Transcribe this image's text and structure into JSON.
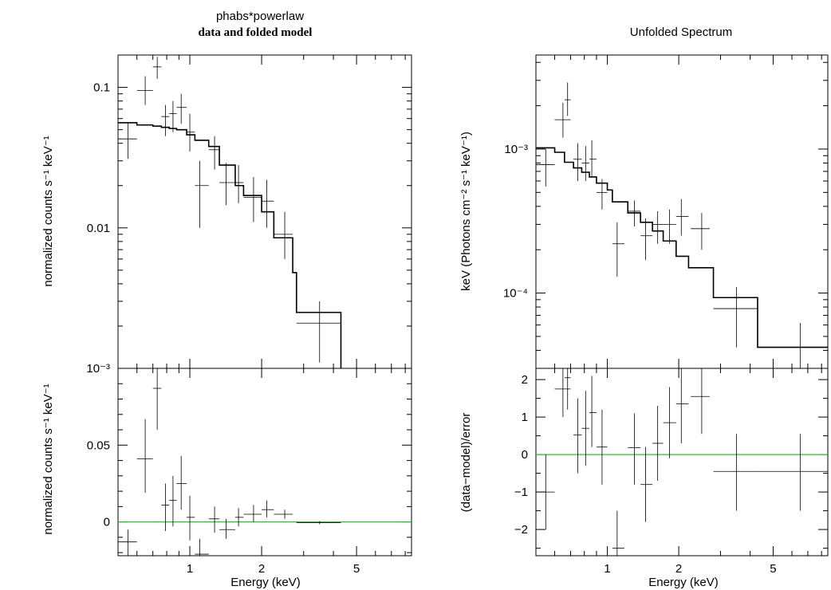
{
  "chart_data": [
    {
      "type": "line",
      "panel": "top-left",
      "title": "phabs*powerlaw",
      "subtitle": "data and folded model",
      "ylabel": "normalized counts s⁻¹ keV⁻¹",
      "xscale": "log",
      "yscale": "log",
      "xlim": [
        0.5,
        8.5
      ],
      "ylim": [
        0.001,
        0.17
      ],
      "yticks": [
        {
          "v": 0.1,
          "label": "0.1"
        },
        {
          "v": 0.01,
          "label": "0.01"
        },
        {
          "v": 0.001,
          "label": "10⁻³"
        }
      ],
      "data": [
        {
          "x": 0.55,
          "xl": 0.5,
          "xh": 0.6,
          "y": 0.043,
          "yl": 0.031,
          "yh": 0.056
        },
        {
          "x": 0.65,
          "xl": 0.6,
          "xh": 0.7,
          "y": 0.095,
          "yl": 0.075,
          "yh": 0.12
        },
        {
          "x": 0.73,
          "xl": 0.7,
          "xh": 0.76,
          "y": 0.14,
          "yl": 0.115,
          "yh": 0.165
        },
        {
          "x": 0.79,
          "xl": 0.76,
          "xh": 0.82,
          "y": 0.062,
          "yl": 0.045,
          "yh": 0.075
        },
        {
          "x": 0.85,
          "xl": 0.82,
          "xh": 0.88,
          "y": 0.065,
          "yl": 0.048,
          "yh": 0.08
        },
        {
          "x": 0.92,
          "xl": 0.88,
          "xh": 0.97,
          "y": 0.072,
          "yl": 0.055,
          "yh": 0.09
        },
        {
          "x": 1.0,
          "xl": 0.97,
          "xh": 1.05,
          "y": 0.048,
          "yl": 0.035,
          "yh": 0.065
        },
        {
          "x": 1.1,
          "xl": 1.05,
          "xh": 1.2,
          "y": 0.02,
          "yl": 0.01,
          "yh": 0.03
        },
        {
          "x": 1.27,
          "xl": 1.2,
          "xh": 1.33,
          "y": 0.036,
          "yl": 0.026,
          "yh": 0.045
        },
        {
          "x": 1.42,
          "xl": 1.33,
          "xh": 1.55,
          "y": 0.021,
          "yl": 0.0145,
          "yh": 0.029
        },
        {
          "x": 1.6,
          "xl": 1.55,
          "xh": 1.68,
          "y": 0.021,
          "yl": 0.015,
          "yh": 0.028
        },
        {
          "x": 1.85,
          "xl": 1.68,
          "xh": 2.0,
          "y": 0.0165,
          "yl": 0.011,
          "yh": 0.023
        },
        {
          "x": 2.1,
          "xl": 2.0,
          "xh": 2.25,
          "y": 0.0155,
          "yl": 0.01,
          "yh": 0.022
        },
        {
          "x": 2.5,
          "xl": 2.25,
          "xh": 2.7,
          "y": 0.009,
          "yl": 0.006,
          "yh": 0.013
        },
        {
          "x": 3.5,
          "xl": 2.8,
          "xh": 4.3,
          "y": 0.0021,
          "yl": 0.0011,
          "yh": 0.003
        }
      ],
      "model": [
        [
          0.5,
          0.056
        ],
        [
          0.6,
          0.054
        ],
        [
          0.7,
          0.053
        ],
        [
          0.76,
          0.052
        ],
        [
          0.82,
          0.051
        ],
        [
          0.88,
          0.05
        ],
        [
          0.97,
          0.046
        ],
        [
          1.05,
          0.042
        ],
        [
          1.2,
          0.038
        ],
        [
          1.33,
          0.028
        ],
        [
          1.55,
          0.02
        ],
        [
          1.68,
          0.017
        ],
        [
          2.0,
          0.013
        ],
        [
          2.25,
          0.0085
        ],
        [
          2.7,
          0.0048
        ],
        [
          2.8,
          0.0025
        ],
        [
          4.3,
          0.0025
        ],
        [
          4.3,
          0.001
        ]
      ]
    },
    {
      "type": "line",
      "panel": "bottom-left",
      "xlabel": "Energy (keV)",
      "ylabel": "normalized counts s⁻¹ keV⁻¹",
      "xscale": "log",
      "yscale": "linear",
      "xlim": [
        0.5,
        8.5
      ],
      "ylim": [
        -0.022,
        0.1
      ],
      "yticks": [
        {
          "v": 0,
          "label": "0"
        },
        {
          "v": 0.05,
          "label": "0.05"
        }
      ],
      "xticks": [
        {
          "v": 1,
          "label": "1"
        },
        {
          "v": 2,
          "label": "2"
        },
        {
          "v": 5,
          "label": "5"
        }
      ],
      "zero": 0,
      "data": [
        {
          "x": 0.55,
          "xl": 0.5,
          "xh": 0.6,
          "y": -0.013,
          "yl": -0.022,
          "yh": -0.005
        },
        {
          "x": 0.65,
          "xl": 0.6,
          "xh": 0.7,
          "y": 0.041,
          "yl": 0.019,
          "yh": 0.067
        },
        {
          "x": 0.73,
          "xl": 0.7,
          "xh": 0.76,
          "y": 0.087,
          "yl": 0.06,
          "yh": 0.1
        },
        {
          "x": 0.79,
          "xl": 0.76,
          "xh": 0.82,
          "y": 0.011,
          "yl": -0.006,
          "yh": 0.025
        },
        {
          "x": 0.85,
          "xl": 0.82,
          "xh": 0.88,
          "y": 0.014,
          "yl": -0.003,
          "yh": 0.03
        },
        {
          "x": 0.92,
          "xl": 0.88,
          "xh": 0.97,
          "y": 0.025,
          "yl": 0.008,
          "yh": 0.043
        },
        {
          "x": 1.0,
          "xl": 0.97,
          "xh": 1.05,
          "y": 0.003,
          "yl": -0.012,
          "yh": 0.017
        },
        {
          "x": 1.1,
          "xl": 1.05,
          "xh": 1.2,
          "y": -0.021,
          "yl": -0.022,
          "yh": -0.011
        },
        {
          "x": 1.27,
          "xl": 1.2,
          "xh": 1.33,
          "y": 0.002,
          "yl": -0.007,
          "yh": 0.01
        },
        {
          "x": 1.42,
          "xl": 1.33,
          "xh": 1.55,
          "y": -0.005,
          "yl": -0.011,
          "yh": 0.002
        },
        {
          "x": 1.6,
          "xl": 1.55,
          "xh": 1.68,
          "y": 0.003,
          "yl": -0.003,
          "yh": 0.009
        },
        {
          "x": 1.85,
          "xl": 1.68,
          "xh": 2.0,
          "y": 0.005,
          "yl": 0.0,
          "yh": 0.011
        },
        {
          "x": 2.1,
          "xl": 2.0,
          "xh": 2.25,
          "y": 0.008,
          "yl": 0.003,
          "yh": 0.014
        },
        {
          "x": 2.5,
          "xl": 2.25,
          "xh": 2.7,
          "y": 0.005,
          "yl": 0.002,
          "yh": 0.008
        },
        {
          "x": 3.5,
          "xl": 2.8,
          "xh": 4.3,
          "y": -0.0005,
          "yl": -0.0015,
          "yh": 0.0005
        }
      ]
    },
    {
      "type": "line",
      "panel": "top-right",
      "title": "Unfolded Spectrum",
      "ylabel": "keV (Photons cm⁻² s⁻¹ keV⁻¹)",
      "xscale": "log",
      "yscale": "log",
      "xlim": [
        0.5,
        8.5
      ],
      "ylim": [
        3e-05,
        0.0045
      ],
      "yticks": [
        {
          "v": 0.001,
          "label": "10⁻³"
        },
        {
          "v": 0.0001,
          "label": "10⁻⁴"
        }
      ],
      "data": [
        {
          "x": 0.55,
          "xl": 0.5,
          "xh": 0.6,
          "y": 0.00078,
          "yl": 0.00055,
          "yh": 0.001
        },
        {
          "x": 0.65,
          "xl": 0.6,
          "xh": 0.7,
          "y": 0.0016,
          "yl": 0.0012,
          "yh": 0.0021
        },
        {
          "x": 0.68,
          "xl": 0.66,
          "xh": 0.7,
          "y": 0.0022,
          "yl": 0.0017,
          "yh": 0.0029
        },
        {
          "x": 0.75,
          "xl": 0.72,
          "xh": 0.78,
          "y": 0.00085,
          "yl": 0.0006,
          "yh": 0.0011
        },
        {
          "x": 0.81,
          "xl": 0.78,
          "xh": 0.84,
          "y": 0.0008,
          "yl": 0.0006,
          "yh": 0.00105
        },
        {
          "x": 0.86,
          "xl": 0.84,
          "xh": 0.9,
          "y": 0.00085,
          "yl": 0.00065,
          "yh": 0.00115
        },
        {
          "x": 0.95,
          "xl": 0.9,
          "xh": 1.0,
          "y": 0.0005,
          "yl": 0.00038,
          "yh": 0.00062
        },
        {
          "x": 1.1,
          "xl": 1.05,
          "xh": 1.18,
          "y": 0.00022,
          "yl": 0.00013,
          "yh": 0.00031
        },
        {
          "x": 1.3,
          "xl": 1.22,
          "xh": 1.38,
          "y": 0.00037,
          "yl": 0.00029,
          "yh": 0.00044
        },
        {
          "x": 1.45,
          "xl": 1.38,
          "xh": 1.55,
          "y": 0.00025,
          "yl": 0.00017,
          "yh": 0.00033
        },
        {
          "x": 1.63,
          "xl": 1.55,
          "xh": 1.72,
          "y": 0.0003,
          "yl": 0.00022,
          "yh": 0.00037
        },
        {
          "x": 1.83,
          "xl": 1.72,
          "xh": 1.95,
          "y": 0.0003,
          "yl": 0.00022,
          "yh": 0.00038
        },
        {
          "x": 2.05,
          "xl": 1.95,
          "xh": 2.2,
          "y": 0.00034,
          "yl": 0.00025,
          "yh": 0.00045
        },
        {
          "x": 2.5,
          "xl": 2.25,
          "xh": 2.7,
          "y": 0.00028,
          "yl": 0.0002,
          "yh": 0.00036
        },
        {
          "x": 3.5,
          "xl": 2.8,
          "xh": 4.3,
          "y": 7.8e-05,
          "yl": 4.2e-05,
          "yh": 0.00011
        },
        {
          "x": 6.5,
          "xl": 4.3,
          "xh": 8.5,
          "y": 4.2e-05,
          "yl": 2.4e-05,
          "yh": 6.2e-05
        }
      ],
      "model": [
        [
          0.5,
          0.00102
        ],
        [
          0.6,
          0.00095
        ],
        [
          0.66,
          0.00081
        ],
        [
          0.72,
          0.00074
        ],
        [
          0.78,
          0.00069
        ],
        [
          0.84,
          0.00064
        ],
        [
          0.9,
          0.00058
        ],
        [
          1.0,
          0.00052
        ],
        [
          1.05,
          0.00043
        ],
        [
          1.22,
          0.00036
        ],
        [
          1.38,
          0.00031
        ],
        [
          1.55,
          0.00027
        ],
        [
          1.72,
          0.00023
        ],
        [
          1.95,
          0.00018
        ],
        [
          2.2,
          0.00015
        ],
        [
          2.8,
          9.3e-05
        ],
        [
          4.3,
          9.3e-05
        ],
        [
          4.3,
          4.2e-05
        ],
        [
          8.5,
          4.2e-05
        ]
      ]
    },
    {
      "type": "line",
      "panel": "bottom-right",
      "xlabel": "Energy (keV)",
      "ylabel": "(data−model)/error",
      "xscale": "log",
      "yscale": "linear",
      "xlim": [
        0.5,
        8.5
      ],
      "ylim": [
        -2.7,
        2.3
      ],
      "yticks": [
        {
          "v": -2,
          "label": "−2"
        },
        {
          "v": -1,
          "label": "−1"
        },
        {
          "v": 0,
          "label": "0"
        },
        {
          "v": 1,
          "label": "1"
        },
        {
          "v": 2,
          "label": "2"
        }
      ],
      "xticks": [
        {
          "v": 1,
          "label": "1"
        },
        {
          "v": 2,
          "label": "2"
        },
        {
          "v": 5,
          "label": "5"
        }
      ],
      "zero": 0,
      "data": [
        {
          "x": 0.55,
          "xl": 0.5,
          "xh": 0.6,
          "y": -1.0,
          "yl": -2.0,
          "yh": 0.0
        },
        {
          "x": 0.65,
          "xl": 0.6,
          "xh": 0.7,
          "y": 1.75,
          "yl": 1.0,
          "yh": 2.3
        },
        {
          "x": 0.68,
          "xl": 0.66,
          "xh": 0.7,
          "y": 2.05,
          "yl": 1.2,
          "yh": 2.3
        },
        {
          "x": 0.75,
          "xl": 0.72,
          "xh": 0.78,
          "y": 0.52,
          "yl": -0.5,
          "yh": 1.5
        },
        {
          "x": 0.81,
          "xl": 0.78,
          "xh": 0.84,
          "y": 0.7,
          "yl": -0.3,
          "yh": 1.7
        },
        {
          "x": 0.86,
          "xl": 0.84,
          "xh": 0.9,
          "y": 1.12,
          "yl": 0.2,
          "yh": 2.1
        },
        {
          "x": 0.95,
          "xl": 0.9,
          "xh": 1.0,
          "y": 0.2,
          "yl": -0.8,
          "yh": 1.2
        },
        {
          "x": 1.1,
          "xl": 1.05,
          "xh": 1.18,
          "y": -2.5,
          "yl": -2.7,
          "yh": -1.5
        },
        {
          "x": 1.3,
          "xl": 1.22,
          "xh": 1.38,
          "y": 0.18,
          "yl": -0.8,
          "yh": 1.1
        },
        {
          "x": 1.45,
          "xl": 1.38,
          "xh": 1.55,
          "y": -0.8,
          "yl": -1.8,
          "yh": 0.2
        },
        {
          "x": 1.63,
          "xl": 1.55,
          "xh": 1.72,
          "y": 0.3,
          "yl": -0.7,
          "yh": 1.3
        },
        {
          "x": 1.83,
          "xl": 1.72,
          "xh": 1.95,
          "y": 0.85,
          "yl": -0.1,
          "yh": 1.8
        },
        {
          "x": 2.05,
          "xl": 1.95,
          "xh": 2.2,
          "y": 1.35,
          "yl": 0.3,
          "yh": 2.3
        },
        {
          "x": 2.5,
          "xl": 2.25,
          "xh": 2.7,
          "y": 1.55,
          "yl": 0.55,
          "yh": 2.3
        },
        {
          "x": 3.5,
          "xl": 2.8,
          "xh": 4.3,
          "y": -0.45,
          "yl": -1.5,
          "yh": 0.55
        },
        {
          "x": 6.5,
          "xl": 4.3,
          "xh": 8.5,
          "y": -0.45,
          "yl": -1.5,
          "yh": 0.55
        }
      ]
    }
  ]
}
